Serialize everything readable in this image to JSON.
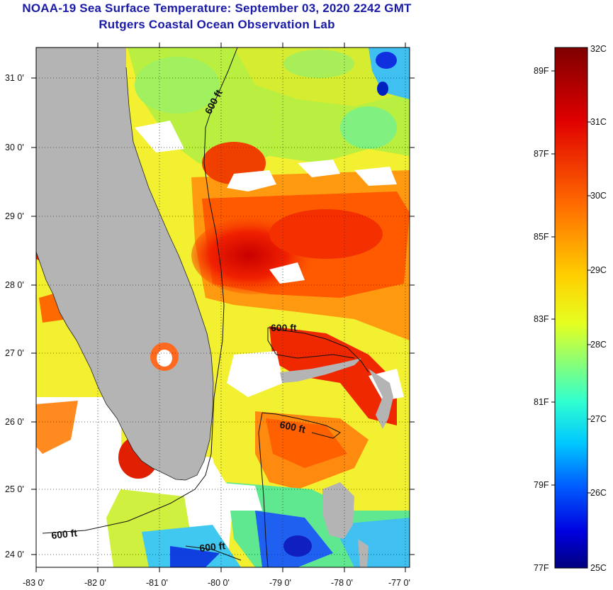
{
  "title": {
    "line1": "NOAA-19 Sea Surface Temperature:  September 03, 2020 2242 GMT",
    "line2": "Rutgers Coastal Ocean Observation Lab"
  },
  "map": {
    "lat_labels": [
      "31 0'",
      "30 0'",
      "29 0'",
      "28 0'",
      "27 0'",
      "26 0'",
      "25 0'",
      "24 0'"
    ],
    "lon_labels": [
      "-83 0'",
      "-82 0'",
      "-81 0'",
      "-80 0'",
      "-79 0'",
      "-78 0'",
      "-77 0'"
    ],
    "contour_label": "600 ft",
    "land_color": "#b4b4b4",
    "no_data_color": "#ffffff"
  },
  "colorbar": {
    "celsius_labels": [
      "32C",
      "31C",
      "30C",
      "29C",
      "28C",
      "27C",
      "26C",
      "25C"
    ],
    "fahrenheit_labels": [
      "89F",
      "87F",
      "85F",
      "83F",
      "81F",
      "79F",
      "77F"
    ],
    "celsius_range": [
      25,
      32
    ],
    "colors": [
      "#7f0000",
      "#ff0000",
      "#ff8000",
      "#ffff00",
      "#80ff80",
      "#00ffff",
      "#0080ff",
      "#0000ff",
      "#00008f"
    ]
  }
}
